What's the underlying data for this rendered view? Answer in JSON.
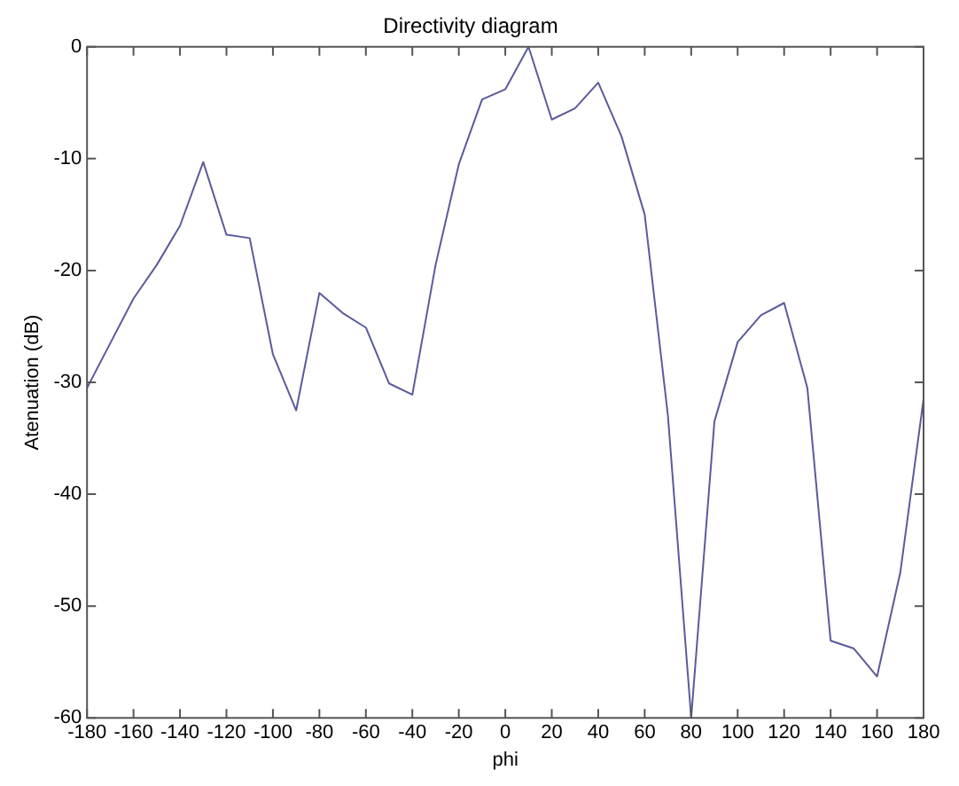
{
  "chart_data": {
    "type": "line",
    "title": "Directivity diagram",
    "xlabel": "phi",
    "ylabel": "Atenuation (dB)",
    "x": [
      -180,
      -170,
      -160,
      -150,
      -140,
      -130,
      -120,
      -110,
      -100,
      -90,
      -80,
      -70,
      -60,
      -50,
      -40,
      -30,
      -20,
      -10,
      0,
      10,
      20,
      30,
      40,
      50,
      60,
      70,
      80,
      90,
      100,
      110,
      120,
      130,
      140,
      150,
      160,
      170,
      180
    ],
    "series": [
      {
        "color": "#5a5a9e",
        "values": [
          -30.5,
          -26.5,
          -22.5,
          -19.5,
          -16,
          -10.3,
          -16.8,
          -17.1,
          -27.5,
          -32.5,
          -22,
          -23.8,
          -25.1,
          -30.1,
          -31.1,
          -19.5,
          -10.5,
          -4.7,
          -3.8,
          0,
          -6.5,
          -5.5,
          -3.2,
          -8,
          -15,
          -33,
          -60,
          -33.5,
          -26.4,
          -24,
          -22.9,
          -30.5,
          -53.1,
          -53.8,
          -56.3,
          -47,
          -31.5
        ]
      }
    ],
    "xlim": [
      -180,
      180
    ],
    "xticks": [
      -180,
      -160,
      -140,
      -120,
      -100,
      -80,
      -60,
      -40,
      -20,
      0,
      20,
      40,
      60,
      80,
      100,
      120,
      140,
      160,
      180
    ],
    "ylim": [
      -60,
      0
    ],
    "yticks": [
      -60,
      -50,
      -40,
      -30,
      -20,
      -10,
      0
    ],
    "grid": false,
    "legend": false,
    "marker": "none",
    "line_style": "solid"
  }
}
